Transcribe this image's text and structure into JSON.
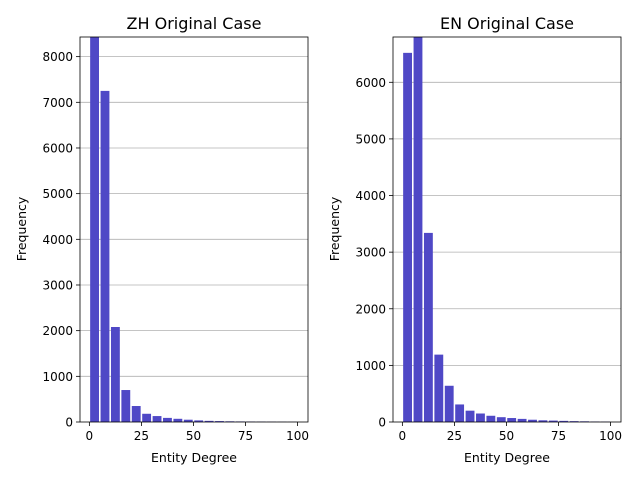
{
  "chart_data": [
    {
      "type": "bar",
      "title": "ZH Original Case",
      "xlabel": "Entity Degree",
      "ylabel": "Frequency",
      "bin_width": 5,
      "bin_starts": [
        0,
        5,
        10,
        15,
        20,
        25,
        30,
        35,
        40,
        45,
        50,
        55,
        60,
        65,
        70,
        75,
        80,
        85,
        90,
        95
      ],
      "values": [
        8430,
        7250,
        2080,
        700,
        350,
        180,
        130,
        90,
        70,
        50,
        35,
        25,
        20,
        15,
        12,
        10,
        8,
        6,
        4,
        3
      ],
      "xlim": [
        -4.5,
        105
      ],
      "ylim": [
        0,
        8430
      ],
      "xticks": [
        0,
        25,
        50,
        75,
        100
      ],
      "yticks": [
        0,
        1000,
        2000,
        3000,
        4000,
        5000,
        6000,
        7000,
        8000
      ],
      "color": "#4f48c6",
      "grid": "y"
    },
    {
      "type": "bar",
      "title": "EN Original Case",
      "xlabel": "Entity Degree",
      "ylabel": "Frequency",
      "bin_width": 5,
      "bin_starts": [
        0,
        5,
        10,
        15,
        20,
        25,
        30,
        35,
        40,
        45,
        50,
        55,
        60,
        65,
        70,
        75,
        80,
        85,
        90,
        95
      ],
      "values": [
        6520,
        6800,
        3340,
        1190,
        640,
        310,
        200,
        150,
        110,
        85,
        70,
        55,
        40,
        30,
        25,
        20,
        15,
        12,
        8,
        5
      ],
      "xlim": [
        -4.5,
        105
      ],
      "ylim": [
        0,
        6800
      ],
      "xticks": [
        0,
        25,
        50,
        75,
        100
      ],
      "yticks": [
        0,
        1000,
        2000,
        3000,
        4000,
        5000,
        6000
      ],
      "color": "#4f48c6",
      "grid": "y"
    }
  ]
}
